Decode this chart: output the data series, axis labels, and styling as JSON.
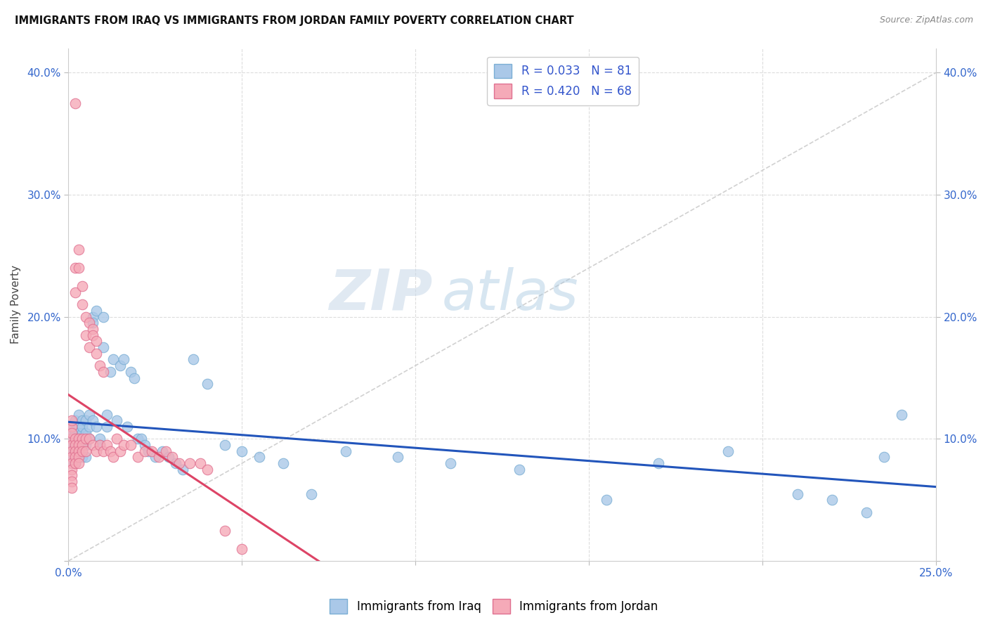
{
  "title": "IMMIGRANTS FROM IRAQ VS IMMIGRANTS FROM JORDAN FAMILY POVERTY CORRELATION CHART",
  "source": "Source: ZipAtlas.com",
  "ylabel": "Family Poverty",
  "xlim": [
    0.0,
    0.25
  ],
  "ylim": [
    0.0,
    0.42
  ],
  "xticks": [
    0.0,
    0.05,
    0.1,
    0.15,
    0.2,
    0.25
  ],
  "yticks": [
    0.0,
    0.1,
    0.2,
    0.3,
    0.4
  ],
  "xticklabels": [
    "0.0%",
    "",
    "",
    "",
    "",
    "25.0%"
  ],
  "yticklabels": [
    "",
    "10.0%",
    "20.0%",
    "30.0%",
    "40.0%"
  ],
  "iraq_color": "#aac8e8",
  "jordan_color": "#f5aab8",
  "iraq_edge": "#7aaed4",
  "jordan_edge": "#e07090",
  "iraq_R": 0.033,
  "iraq_N": 81,
  "jordan_R": 0.42,
  "jordan_N": 68,
  "legend_text_color": "#3355cc",
  "iraq_line_color": "#2255bb",
  "jordan_line_color": "#dd4466",
  "diagonal_color": "#cccccc",
  "watermark_zip": "ZIP",
  "watermark_atlas": "atlas",
  "iraq_x": [
    0.001,
    0.001,
    0.001,
    0.001,
    0.001,
    0.001,
    0.001,
    0.002,
    0.002,
    0.002,
    0.002,
    0.002,
    0.002,
    0.002,
    0.002,
    0.003,
    0.003,
    0.003,
    0.003,
    0.003,
    0.003,
    0.003,
    0.004,
    0.004,
    0.004,
    0.004,
    0.004,
    0.005,
    0.005,
    0.005,
    0.005,
    0.006,
    0.006,
    0.006,
    0.007,
    0.007,
    0.007,
    0.008,
    0.008,
    0.009,
    0.009,
    0.01,
    0.01,
    0.011,
    0.011,
    0.012,
    0.013,
    0.014,
    0.015,
    0.016,
    0.017,
    0.018,
    0.019,
    0.02,
    0.021,
    0.022,
    0.023,
    0.025,
    0.027,
    0.029,
    0.031,
    0.033,
    0.036,
    0.04,
    0.045,
    0.05,
    0.055,
    0.062,
    0.07,
    0.08,
    0.095,
    0.11,
    0.13,
    0.155,
    0.17,
    0.19,
    0.21,
    0.22,
    0.23,
    0.235,
    0.24
  ],
  "iraq_y": [
    0.1,
    0.095,
    0.09,
    0.085,
    0.08,
    0.105,
    0.11,
    0.1,
    0.095,
    0.09,
    0.085,
    0.08,
    0.115,
    0.105,
    0.095,
    0.11,
    0.1,
    0.09,
    0.12,
    0.105,
    0.095,
    0.085,
    0.115,
    0.105,
    0.095,
    0.085,
    0.11,
    0.115,
    0.105,
    0.095,
    0.085,
    0.12,
    0.11,
    0.1,
    0.2,
    0.195,
    0.115,
    0.205,
    0.11,
    0.1,
    0.095,
    0.2,
    0.175,
    0.12,
    0.11,
    0.155,
    0.165,
    0.115,
    0.16,
    0.165,
    0.11,
    0.155,
    0.15,
    0.1,
    0.1,
    0.095,
    0.09,
    0.085,
    0.09,
    0.085,
    0.08,
    0.075,
    0.165,
    0.145,
    0.095,
    0.09,
    0.085,
    0.08,
    0.055,
    0.09,
    0.085,
    0.08,
    0.075,
    0.05,
    0.08,
    0.09,
    0.055,
    0.05,
    0.04,
    0.085,
    0.12
  ],
  "jordan_x": [
    0.001,
    0.001,
    0.001,
    0.001,
    0.001,
    0.001,
    0.001,
    0.001,
    0.001,
    0.001,
    0.001,
    0.001,
    0.002,
    0.002,
    0.002,
    0.002,
    0.002,
    0.002,
    0.002,
    0.002,
    0.003,
    0.003,
    0.003,
    0.003,
    0.003,
    0.003,
    0.003,
    0.004,
    0.004,
    0.004,
    0.004,
    0.004,
    0.005,
    0.005,
    0.005,
    0.005,
    0.006,
    0.006,
    0.006,
    0.007,
    0.007,
    0.007,
    0.008,
    0.008,
    0.008,
    0.009,
    0.009,
    0.01,
    0.01,
    0.011,
    0.012,
    0.013,
    0.014,
    0.015,
    0.016,
    0.018,
    0.02,
    0.022,
    0.024,
    0.026,
    0.028,
    0.03,
    0.032,
    0.035,
    0.038,
    0.04,
    0.045,
    0.05
  ],
  "jordan_y": [
    0.1,
    0.095,
    0.09,
    0.085,
    0.08,
    0.075,
    0.07,
    0.065,
    0.06,
    0.11,
    0.105,
    0.115,
    0.375,
    0.24,
    0.22,
    0.1,
    0.095,
    0.09,
    0.085,
    0.08,
    0.255,
    0.24,
    0.1,
    0.095,
    0.09,
    0.085,
    0.08,
    0.225,
    0.21,
    0.1,
    0.095,
    0.09,
    0.2,
    0.185,
    0.1,
    0.09,
    0.195,
    0.175,
    0.1,
    0.19,
    0.185,
    0.095,
    0.18,
    0.17,
    0.09,
    0.16,
    0.095,
    0.155,
    0.09,
    0.095,
    0.09,
    0.085,
    0.1,
    0.09,
    0.095,
    0.095,
    0.085,
    0.09,
    0.09,
    0.085,
    0.09,
    0.085,
    0.08,
    0.08,
    0.08,
    0.075,
    0.025,
    0.01
  ]
}
